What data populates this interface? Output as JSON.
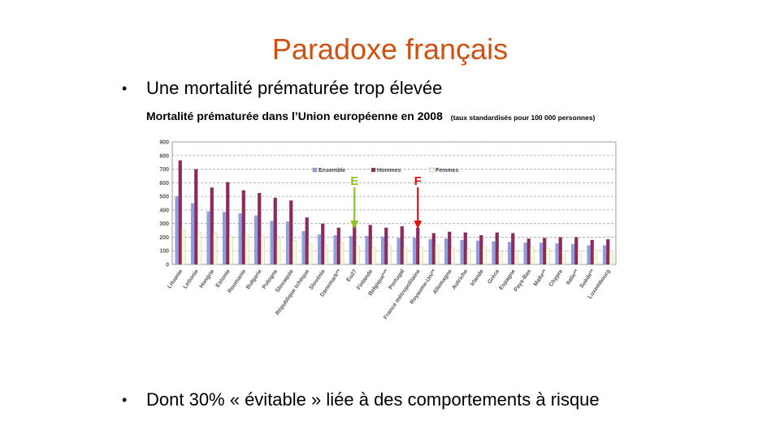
{
  "slide": {
    "title": "Paradoxe français",
    "bullet1": "Une mortalité prématurée trop élevée",
    "bullet2": "Dont 30% « évitable » liée à des comportements à risque",
    "bullet_symbol": "•",
    "title_color": "#d2500f"
  },
  "chart_title": "Mortalité prématurée dans l’Union européenne en 2008",
  "chart_subtitle": "(taux standardisés pour 100 000 personnes)",
  "chart_data": {
    "type": "bar",
    "ylim": [
      0,
      900
    ],
    "yticks": [
      0,
      100,
      200,
      300,
      400,
      500,
      600,
      700,
      800,
      900
    ],
    "grid": true,
    "legend_position": "top-right",
    "categories": [
      "Lituanie",
      "Lettonie",
      "Hongrie",
      "Estonie",
      "Roumanie",
      "Bulgarie",
      "Pologne",
      "Slovaquie",
      "République tchèque",
      "Slovénie",
      "Danemark**",
      "Eu27",
      "Finlande",
      "Belgique***",
      "Portugal",
      "France métropolitaine",
      "Royaume-Uni**",
      "Allemagne",
      "Autriche",
      "Irlande",
      "Grèce",
      "Espagne",
      "Pays-Bas",
      "Malte**",
      "Chypre",
      "Italie**",
      "Suède**",
      "Luxembourg"
    ],
    "series": [
      {
        "name": "Ensemble",
        "color": "#8f9fdc",
        "values": [
          500,
          450,
          390,
          385,
          375,
          360,
          320,
          315,
          245,
          220,
          215,
          210,
          210,
          205,
          195,
          195,
          185,
          190,
          180,
          175,
          170,
          165,
          160,
          160,
          155,
          150,
          140,
          140
        ]
      },
      {
        "name": "Hommes",
        "color": "#8b2a5b",
        "values": [
          765,
          700,
          565,
          605,
          545,
          525,
          490,
          470,
          345,
          300,
          270,
          285,
          290,
          270,
          280,
          270,
          230,
          240,
          235,
          215,
          235,
          230,
          190,
          195,
          200,
          200,
          180,
          185
        ]
      },
      {
        "name": "Femmes",
        "color": "#fff8dc",
        "values": [
          255,
          235,
          230,
          205,
          220,
          205,
          185,
          175,
          150,
          140,
          160,
          135,
          125,
          140,
          120,
          125,
          140,
          120,
          115,
          130,
          100,
          100,
          125,
          115,
          100,
          100,
          105,
          100
        ]
      }
    ],
    "annotations": [
      {
        "label": "E",
        "category": "Eu27",
        "color": "#8fc31f"
      },
      {
        "label": "F",
        "category": "France métropolitaine",
        "color": "#e01010"
      }
    ]
  }
}
